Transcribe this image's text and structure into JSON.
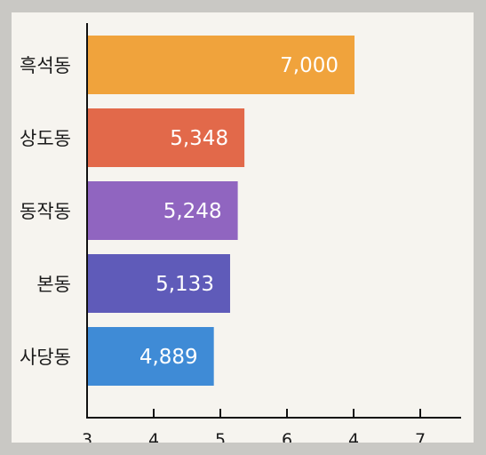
{
  "chart_data": {
    "type": "bar",
    "orientation": "horizontal",
    "categories": [
      "흑석동",
      "상도동",
      "동작동",
      "본동",
      "사당동"
    ],
    "values": [
      7000,
      5348,
      5248,
      5133,
      4889
    ],
    "value_labels": [
      "7,000",
      "5,348",
      "5,248",
      "5,133",
      "4,889"
    ],
    "bar_colors": [
      "#f0a33c",
      "#e2694a",
      "#9065c0",
      "#5f5bb9",
      "#3f8bd6"
    ],
    "x_tick_labels": [
      "3",
      "4",
      "5",
      "6",
      "4",
      "7"
    ],
    "title": "",
    "xlabel": "",
    "ylabel": "",
    "legend": "none",
    "grid": false
  }
}
